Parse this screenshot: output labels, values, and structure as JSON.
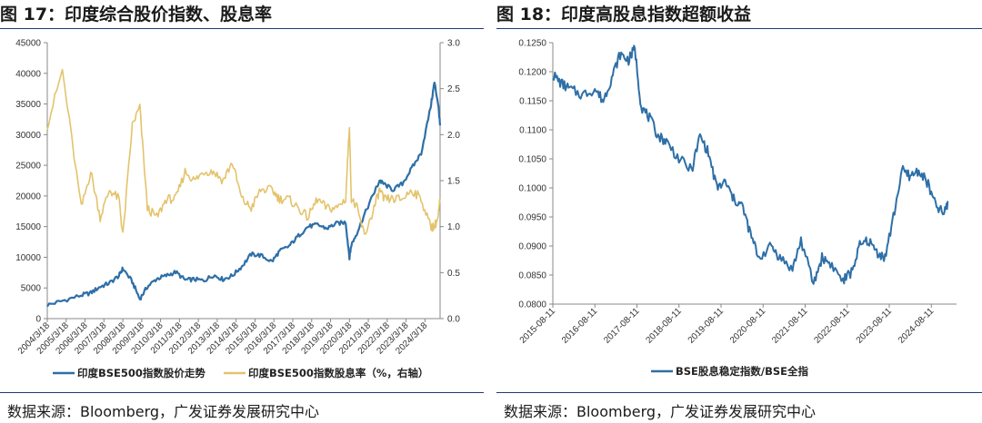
{
  "panels": {
    "left": {
      "title": "图 17：印度综合股价指数、股息率",
      "source": "数据来源：Bloomberg，广发证券发展研究中心"
    },
    "right": {
      "title": "图 18：印度高股息指数超额收益",
      "source": "数据来源：Bloomberg，广发证券发展研究中心"
    }
  },
  "chart_data": [
    {
      "type": "line",
      "x_tick_labels": [
        "2004/3/18",
        "2005/3/18",
        "2006/3/18",
        "2007/3/18",
        "2008/3/18",
        "2009/3/18",
        "2010/3/18",
        "2011/3/18",
        "2012/3/18",
        "2013/3/18",
        "2014/3/18",
        "2015/3/18",
        "2016/3/18",
        "2017/3/18",
        "2018/3/18",
        "2019/3/18",
        "2020/3/18",
        "2021/3/18",
        "2022/3/18",
        "2023/3/18",
        "2024/3/18"
      ],
      "y_left_ticks": [
        "0",
        "5000",
        "10000",
        "15000",
        "20000",
        "25000",
        "30000",
        "35000",
        "40000",
        "45000"
      ],
      "y_right_ticks": [
        "0.0",
        "0.5",
        "1.0",
        "1.5",
        "2.0",
        "2.5",
        "3.0"
      ],
      "ylim_left": [
        0,
        45000
      ],
      "ylim_right": [
        0,
        3.0
      ],
      "legend_position": "bottom",
      "x": [
        2004.2,
        2005.0,
        2006.0,
        2006.5,
        2007.0,
        2007.5,
        2008.0,
        2008.2,
        2008.7,
        2009.1,
        2009.5,
        2010.0,
        2010.5,
        2011.0,
        2011.5,
        2012.0,
        2012.5,
        2013.0,
        2013.5,
        2014.0,
        2014.5,
        2015.0,
        2015.5,
        2016.1,
        2016.5,
        2017.0,
        2017.5,
        2018.0,
        2018.5,
        2019.0,
        2019.5,
        2020.0,
        2020.2,
        2020.3,
        2020.6,
        2021.0,
        2021.5,
        2021.8,
        2022.0,
        2022.5,
        2023.0,
        2023.5,
        2024.0,
        2024.5,
        2024.7,
        2024.9,
        2025.0
      ],
      "series": [
        {
          "name": "印度BSE500指数股价走势",
          "axis": "left",
          "color": "#2e6fa7",
          "values": [
            2200,
            2900,
            3800,
            4200,
            5200,
            5800,
            7000,
            8200,
            6000,
            3200,
            5200,
            6500,
            7000,
            7600,
            6300,
            6400,
            6200,
            7100,
            6400,
            7000,
            8500,
            10500,
            10300,
            9300,
            11000,
            11800,
            13500,
            15000,
            15300,
            14700,
            15500,
            15700,
            10000,
            12000,
            14000,
            17000,
            20500,
            22500,
            22000,
            21000,
            22000,
            24500,
            27000,
            34500,
            38500,
            35000,
            31500
          ]
        },
        {
          "name": "印度BSE500指数股息率（%，右轴）",
          "axis": "right",
          "color": "#e3c36b",
          "values": [
            2.1,
            2.7,
            1.2,
            1.6,
            1.1,
            1.4,
            1.3,
            0.9,
            2.1,
            2.3,
            1.2,
            1.1,
            1.3,
            1.3,
            1.6,
            1.5,
            1.6,
            1.6,
            1.5,
            1.7,
            1.3,
            1.2,
            1.4,
            1.4,
            1.3,
            1.3,
            1.2,
            1.1,
            1.3,
            1.2,
            1.2,
            1.3,
            2.1,
            1.3,
            1.2,
            0.9,
            1.2,
            1.4,
            1.3,
            1.3,
            1.3,
            1.4,
            1.3,
            1.0,
            1.0,
            1.1,
            1.3
          ]
        }
      ]
    },
    {
      "type": "line",
      "x_tick_labels": [
        "2015-08-11",
        "2016-08-11",
        "2017-08-11",
        "2018-08-11",
        "2019-08-11",
        "2020-08-11",
        "2021-08-11",
        "2022-08-11",
        "2023-08-11",
        "2024-08-11"
      ],
      "y_ticks": [
        "0.0800",
        "0.0850",
        "0.0900",
        "0.0950",
        "0.1000",
        "0.1050",
        "0.1100",
        "0.1150",
        "0.1200",
        "0.1250"
      ],
      "ylim": [
        0.08,
        0.125
      ],
      "legend_position": "bottom",
      "x": [
        2015.6,
        2015.8,
        2016.0,
        2016.3,
        2016.6,
        2016.8,
        2017.0,
        2017.2,
        2017.4,
        2017.55,
        2017.7,
        2017.9,
        2018.1,
        2018.3,
        2018.6,
        2018.9,
        2019.1,
        2019.3,
        2019.5,
        2019.7,
        2019.9,
        2020.1,
        2020.3,
        2020.5,
        2020.8,
        2021.0,
        2021.3,
        2021.5,
        2021.8,
        2022.0,
        2022.2,
        2022.5,
        2022.7,
        2022.9,
        2023.1,
        2023.3,
        2023.5,
        2023.7,
        2023.9,
        2024.1,
        2024.3,
        2024.5,
        2024.7,
        2024.9,
        2025.0
      ],
      "series": [
        {
          "name": "BSE股息稳定指数/BSE全指",
          "color": "#2e6fa7",
          "values": [
            0.1195,
            0.118,
            0.117,
            0.116,
            0.117,
            0.115,
            0.119,
            0.123,
            0.122,
            0.124,
            0.114,
            0.112,
            0.109,
            0.108,
            0.105,
            0.103,
            0.109,
            0.106,
            0.1,
            0.101,
            0.098,
            0.097,
            0.092,
            0.088,
            0.09,
            0.088,
            0.086,
            0.091,
            0.0835,
            0.088,
            0.087,
            0.084,
            0.0855,
            0.09,
            0.091,
            0.089,
            0.088,
            0.095,
            0.103,
            0.102,
            0.103,
            0.101,
            0.097,
            0.0955,
            0.0975
          ]
        }
      ]
    }
  ]
}
